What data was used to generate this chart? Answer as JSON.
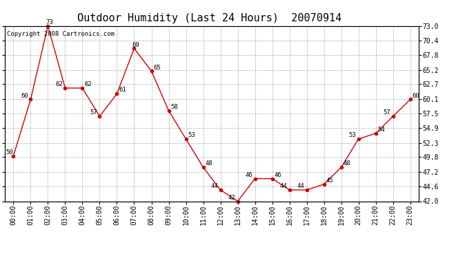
{
  "title": "Outdoor Humidity (Last 24 Hours)  20070914",
  "copyright": "Copyright 2008 Cartronics.com",
  "hours": [
    "00:00",
    "01:00",
    "02:00",
    "03:00",
    "04:00",
    "05:00",
    "06:00",
    "07:00",
    "08:00",
    "09:00",
    "10:00",
    "11:00",
    "12:00",
    "13:00",
    "14:00",
    "15:00",
    "16:00",
    "17:00",
    "18:00",
    "19:00",
    "20:00",
    "21:00",
    "22:00",
    "23:00"
  ],
  "values": [
    50,
    60,
    73,
    62,
    62,
    57,
    61,
    69,
    65,
    58,
    53,
    48,
    44,
    42,
    46,
    46,
    44,
    44,
    45,
    48,
    53,
    54,
    57,
    60
  ],
  "yticks": [
    42.0,
    44.6,
    47.2,
    49.8,
    52.3,
    54.9,
    57.5,
    60.1,
    62.7,
    65.2,
    67.8,
    70.4,
    73.0
  ],
  "ylim": [
    42.0,
    73.0
  ],
  "line_color": "#cc0000",
  "marker_color": "#cc0000",
  "bg_color": "#ffffff",
  "grid_color": "#aaaaaa",
  "title_fontsize": 11,
  "label_fontsize": 6.5,
  "tick_fontsize": 7,
  "copyright_fontsize": 6.5
}
